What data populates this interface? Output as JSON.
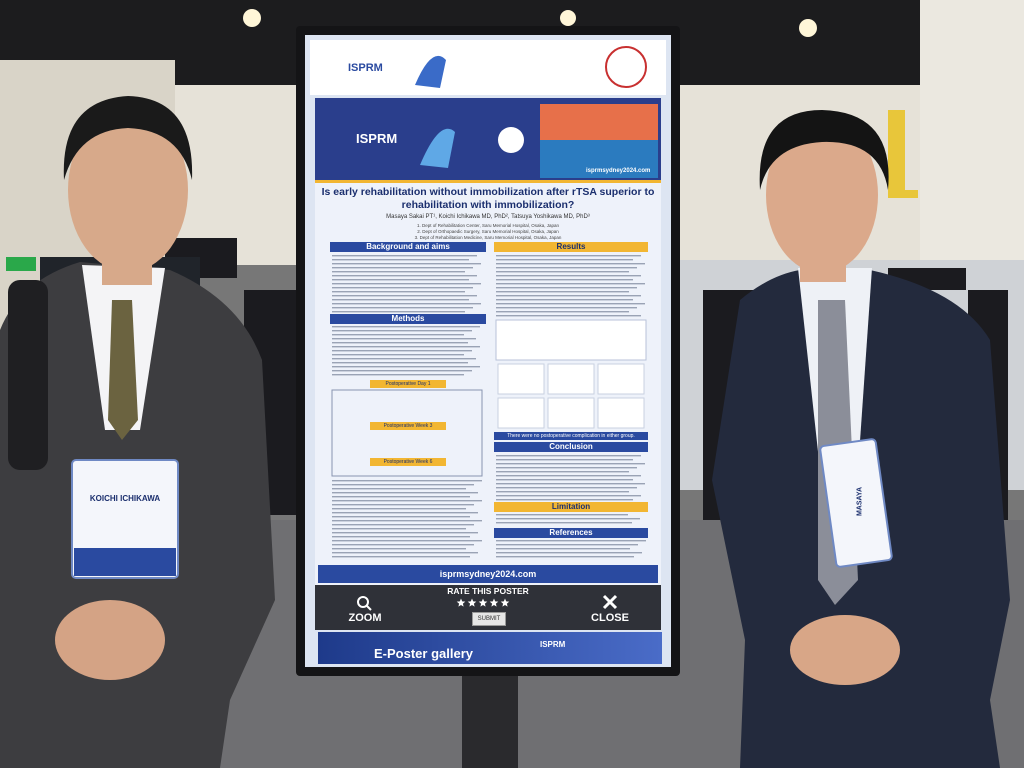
{
  "header": {
    "logo_text": "ISPRM",
    "event_site": "isprmsydney2024.com"
  },
  "poster": {
    "title": "Is early rehabilitation without immobilization after rTSA superior to rehabilitation with immobilization?",
    "authors": "Masaya Sakai PT¹, Koichi Ichikawa MD, PhD², Tatsuya Yoshikawa MD, PhD³",
    "affiliations": [
      "1. Dept of Rehabilitation Center, Saru Memorial Hospital, Osaka, Japan",
      "2. Dept of Orthopaedic Surgery, Saru Memorial Hospital, Osaka, Japan",
      "3. Dept of Rehabilitation Medicine, Saru Memorial Hospital, Osaka, Japan"
    ],
    "left_sections": [
      "Background and aims",
      "Methods"
    ],
    "protocol_steps": [
      "Postoperative Day 1",
      "Postoperative Week 3",
      "Postoperative Week 6"
    ],
    "right_sections": [
      "Results",
      "Conclusion",
      "Limitation",
      "References"
    ],
    "results_note": "There were no postoperative complication in either group.",
    "url": "isprmsydney2024.com"
  },
  "controls": {
    "zoom": "ZOOM",
    "rate": "RATE THIS POSTER",
    "submit": "SUBMIT",
    "close": "CLOSE"
  },
  "footer": {
    "title": "E-Poster gallery",
    "logo_text": "ISPRM"
  },
  "badges": {
    "left": "KOICHI ICHIKAWA",
    "right": "MASAYA"
  }
}
